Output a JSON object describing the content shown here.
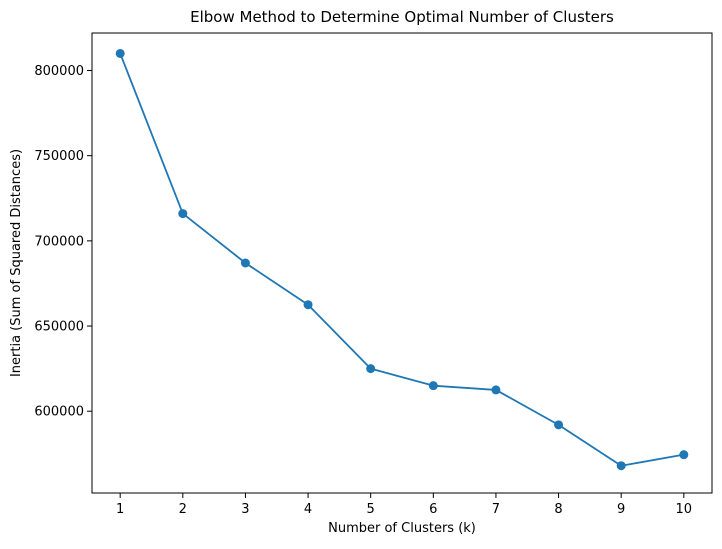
{
  "chart_data": {
    "type": "line",
    "title": "Elbow Method to Determine Optimal Number of Clusters",
    "xlabel": "Number of Clusters (k)",
    "ylabel": "Inertia (Sum of Squared Distances)",
    "x": [
      1,
      2,
      3,
      4,
      5,
      6,
      7,
      8,
      9,
      10
    ],
    "xticks": [
      "1",
      "2",
      "3",
      "4",
      "5",
      "6",
      "7",
      "8",
      "9",
      "10"
    ],
    "yticks": [
      600000,
      650000,
      700000,
      750000,
      800000
    ],
    "ytick_labels": [
      "600000",
      "650000",
      "700000",
      "750000",
      "800000"
    ],
    "xlim": [
      0.55,
      10.45
    ],
    "ylim": [
      552000,
      822000
    ],
    "grid": false,
    "marker": "circle",
    "series": [
      {
        "values": [
          810000,
          716000,
          687000,
          662500,
          625000,
          615000,
          612500,
          592000,
          568000,
          574500
        ],
        "color": "#1f77b4"
      }
    ]
  }
}
